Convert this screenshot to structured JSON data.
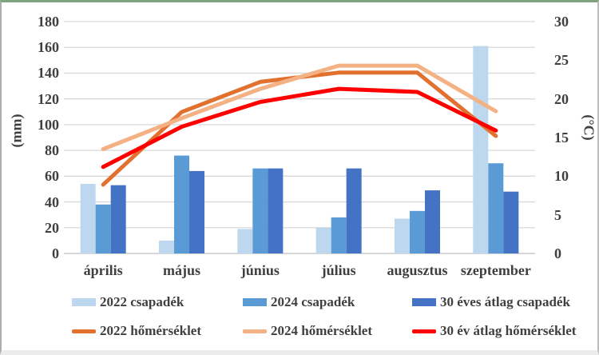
{
  "chart_data": {
    "type": "combo-bar-line",
    "title": "",
    "categories": [
      "április",
      "május",
      "június",
      "július",
      "augusztus",
      "szeptember"
    ],
    "bar_series": [
      {
        "name": "2022 csapadék",
        "color": "#BDD7EE",
        "axis": "left",
        "values": [
          54,
          10,
          19,
          20,
          27,
          161
        ]
      },
      {
        "name": "2024 csapadék",
        "color": "#5B9BD5",
        "axis": "left",
        "values": [
          38,
          76,
          66,
          28,
          33,
          70
        ]
      },
      {
        "name": "30 éves átlag csapadék",
        "color": "#4472C4",
        "axis": "left",
        "values": [
          53,
          64,
          66,
          66,
          49,
          48
        ]
      }
    ],
    "line_series": [
      {
        "name": "2022 hőmérséklet",
        "color": "#E2702E",
        "axis": "right",
        "values": [
          8.9,
          18.3,
          22.2,
          23.4,
          23.4,
          15.2
        ]
      },
      {
        "name": "2024 hőmérséklet",
        "color": "#F4B183",
        "axis": "right",
        "values": [
          13.5,
          17.5,
          21.3,
          24.3,
          24.3,
          18.4
        ]
      },
      {
        "name": "30 év átlag hőmérséklet",
        "color": "#FE0000",
        "axis": "right",
        "values": [
          11.2,
          16.4,
          19.6,
          21.3,
          20.9,
          15.9
        ]
      }
    ],
    "left_axis": {
      "title": "(mm)",
      "min": 0,
      "max": 180,
      "step": 20,
      "ticks": [
        180,
        160,
        140,
        120,
        100,
        80,
        60,
        40,
        20,
        0
      ]
    },
    "right_axis": {
      "title": "(°C)",
      "min": 0,
      "max": 30,
      "step": 5,
      "ticks": [
        30,
        25,
        20,
        15,
        10,
        5,
        0
      ]
    },
    "grid": {
      "on": true,
      "line_color": "#D9D9D9",
      "baseline_color": "#BFBFBF"
    },
    "legend": {
      "position": "bottom",
      "rows": 2
    }
  }
}
